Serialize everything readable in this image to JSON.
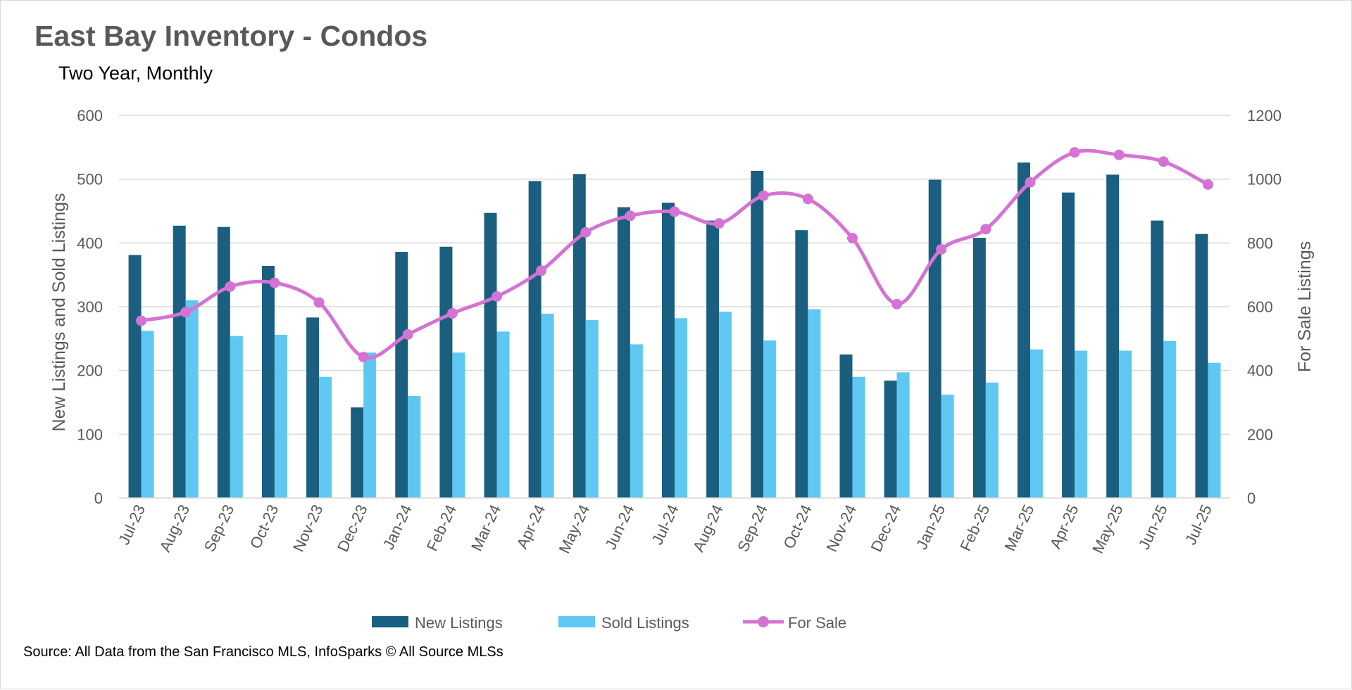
{
  "chart_data": {
    "type": "bar",
    "title": "East Bay Inventory - Condos",
    "subtitle": "Two Year, Monthly",
    "ylabel": "New Listings and Sold Listings",
    "y2label": "For Sale Listings",
    "xlabel": "",
    "ylim": [
      0,
      600
    ],
    "y2lim": [
      0,
      1200
    ],
    "y_ticks": [
      0,
      100,
      200,
      300,
      400,
      500,
      600
    ],
    "y2_ticks": [
      0,
      200,
      400,
      600,
      800,
      1000,
      1200
    ],
    "grid": true,
    "legend_position": "bottom",
    "categories": [
      "Jul-23",
      "Aug-23",
      "Sep-23",
      "Oct-23",
      "Nov-23",
      "Dec-23",
      "Jan-24",
      "Feb-24",
      "Mar-24",
      "Apr-24",
      "May-24",
      "Jun-24",
      "Jul-24",
      "Aug-24",
      "Sep-24",
      "Oct-24",
      "Nov-24",
      "Dec-24",
      "Jan-25",
      "Feb-25",
      "Mar-25",
      "Apr-25",
      "May-25",
      "Jun-25",
      "Jul-25"
    ],
    "series": [
      {
        "name": "New Listings",
        "type": "bar",
        "axis": "left",
        "color": "#1a5e80",
        "values": [
          381,
          427,
          425,
          364,
          283,
          142,
          386,
          394,
          447,
          497,
          508,
          456,
          463,
          435,
          513,
          420,
          225,
          184,
          499,
          408,
          526,
          479,
          507,
          435,
          414
        ]
      },
      {
        "name": "Sold Listings",
        "type": "bar",
        "axis": "left",
        "color": "#5ec8f2",
        "values": [
          262,
          310,
          254,
          256,
          190,
          228,
          160,
          228,
          261,
          289,
          279,
          241,
          282,
          292,
          247,
          296,
          190,
          197,
          162,
          181,
          233,
          231,
          231,
          246,
          212
        ]
      },
      {
        "name": "For Sale",
        "type": "line",
        "axis": "right",
        "color": "#d473d4",
        "values": [
          556,
          583,
          663,
          675,
          613,
          442,
          513,
          579,
          632,
          713,
          833,
          885,
          898,
          861,
          948,
          938,
          815,
          608,
          780,
          843,
          990,
          1084,
          1076,
          1055,
          983
        ]
      }
    ]
  },
  "source_note": "Source: All Data from the San Francisco MLS, InfoSparks © All Source MLSs"
}
